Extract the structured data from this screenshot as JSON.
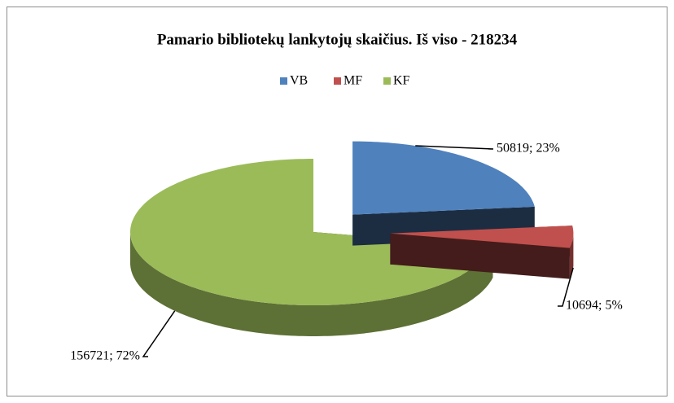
{
  "chart_data": {
    "type": "pie",
    "title": "Pamario bibliotekų lankytojų skaičius. Iš viso - 218234",
    "categories": [
      "VB",
      "MF",
      "KF"
    ],
    "values": [
      50819,
      10694,
      156721
    ],
    "value_labels": [
      "50819; 23%",
      "10694; 5%",
      "156721; 72%"
    ],
    "colors": [
      "#4f81bd",
      "#c0504d",
      "#9bbb59"
    ],
    "legend": "top",
    "three_d": true,
    "exploded": true
  }
}
